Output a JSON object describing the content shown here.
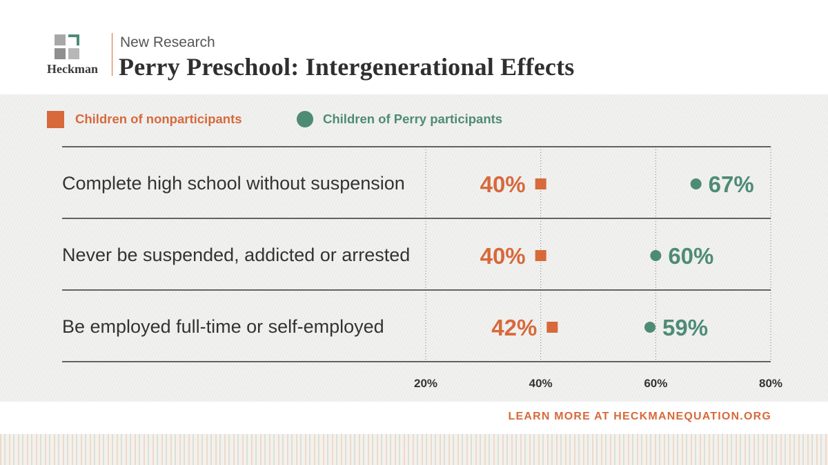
{
  "header": {
    "logo_text": "Heckman",
    "kicker": "New Research",
    "title": "Perry Preschool: Intergenerational Effects"
  },
  "colors": {
    "orange": "#d7693a",
    "green": "#4e8b76",
    "gray_square": "#9b9b9b",
    "text": "#333333"
  },
  "legend": {
    "series_a": "Children of nonparticipants",
    "series_b": "Children of Perry participants",
    "series_a_marker": "square",
    "series_b_marker": "circle",
    "position": "top-left"
  },
  "chart_data": {
    "type": "scatter",
    "categories": [
      "Complete high school without suspension",
      "Never be suspended, addicted or arrested",
      "Be employed full-time or self-employed"
    ],
    "series": [
      {
        "name": "Children of nonparticipants",
        "values": [
          40,
          40,
          42
        ],
        "labels": [
          "40%",
          "40%",
          "42%"
        ]
      },
      {
        "name": "Children of Perry participants",
        "values": [
          67,
          60,
          59
        ],
        "labels": [
          "67%",
          "60%",
          "59%"
        ]
      }
    ],
    "xticks": [
      "20%",
      "40%",
      "60%",
      "80%"
    ],
    "xtick_values": [
      20,
      40,
      60,
      80
    ],
    "xlim": [
      20,
      80
    ],
    "grid": "vertical dotted",
    "xlabel": "",
    "ylabel": ""
  },
  "footer": {
    "link_text": "LEARN MORE AT HECKMANEQUATION.ORG"
  }
}
